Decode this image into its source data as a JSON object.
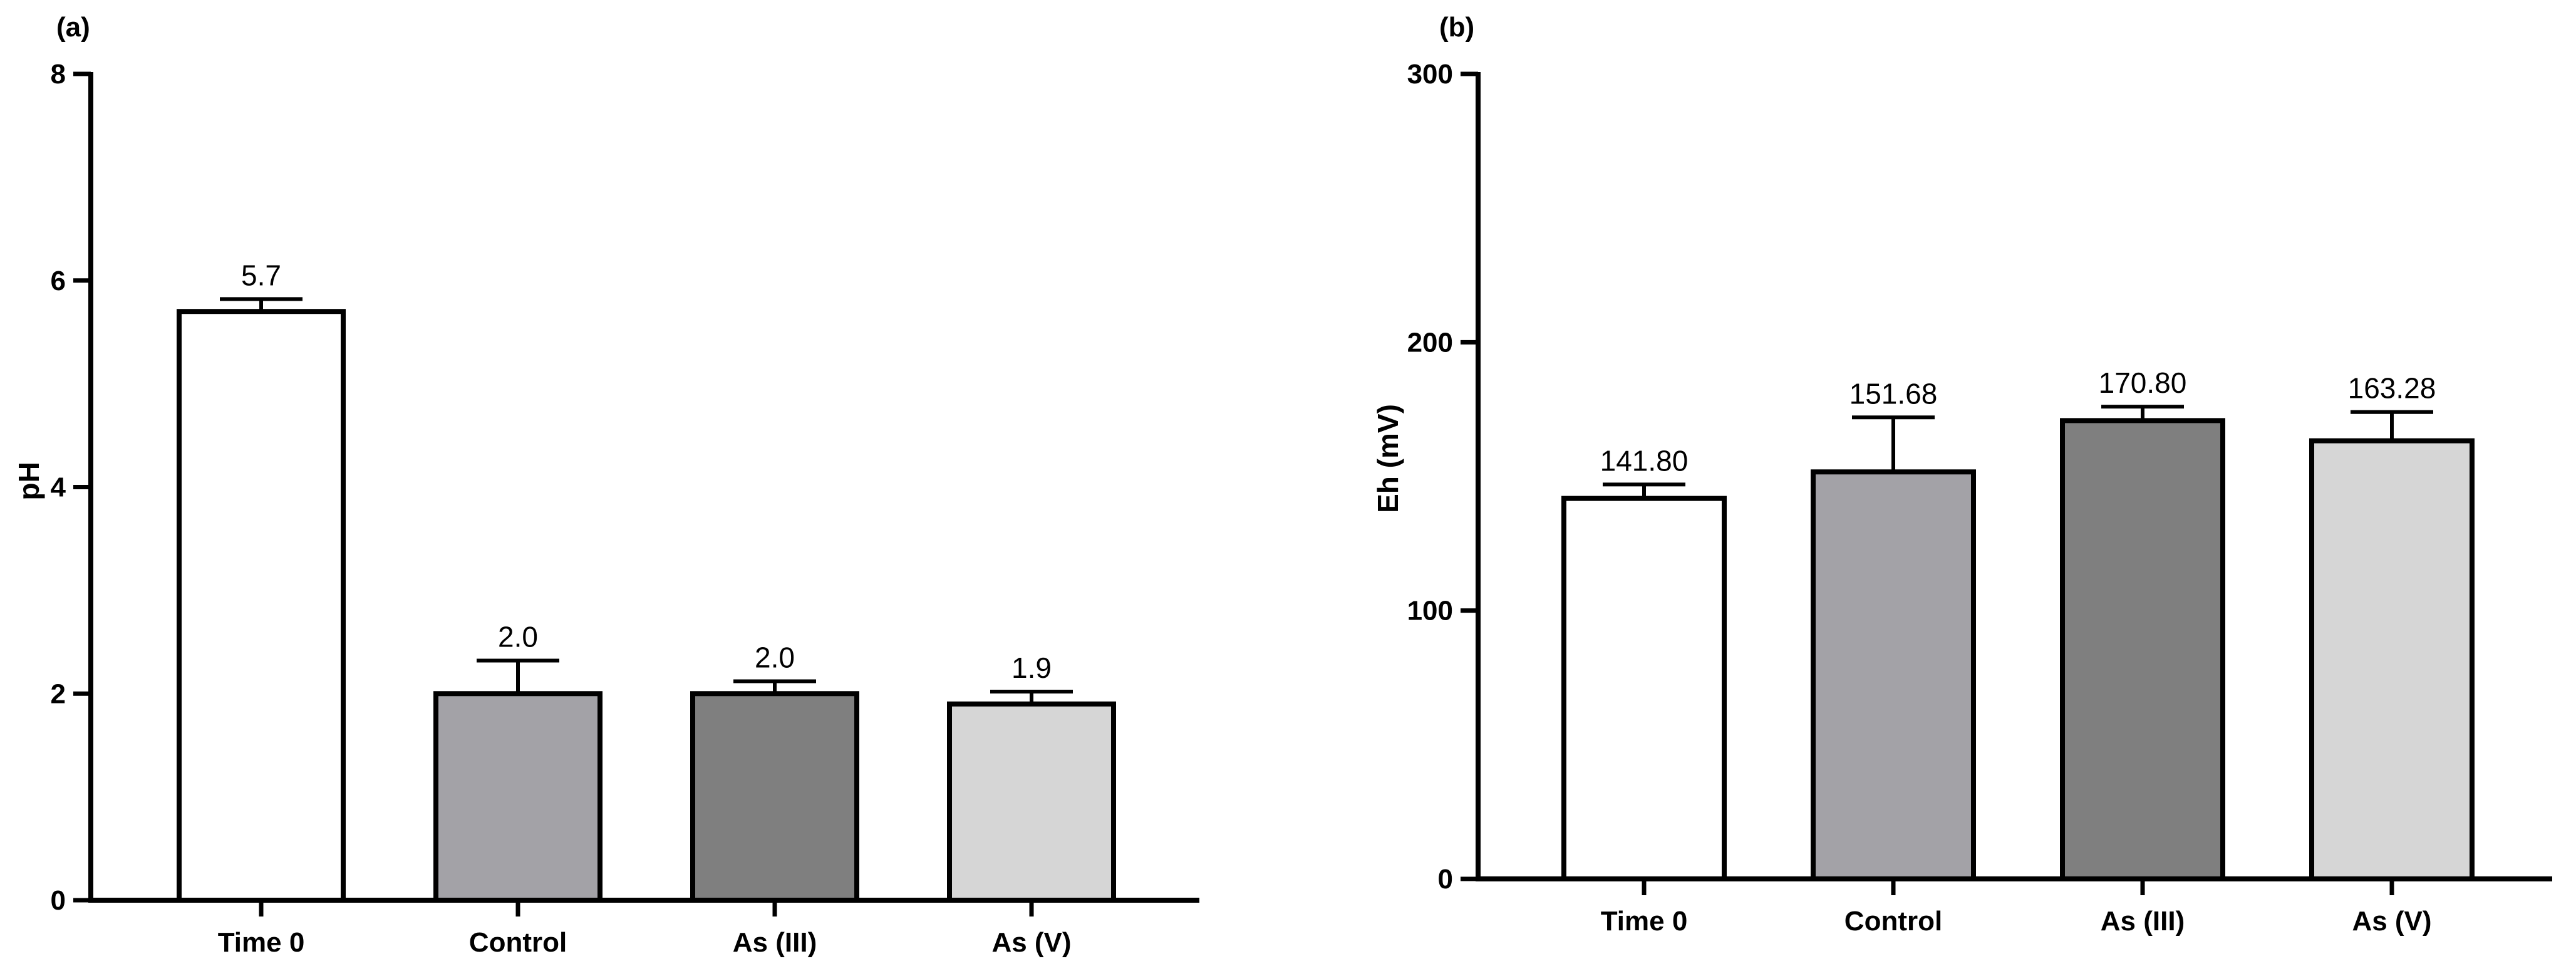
{
  "chart_data": [
    {
      "type": "bar",
      "panel_label": "(a)",
      "categories": [
        "Time 0",
        "Control",
        "As (III)",
        "As (V)"
      ],
      "values": [
        5.7,
        2.0,
        2.0,
        1.9
      ],
      "error_upper": [
        5.82,
        2.32,
        2.12,
        2.02
      ],
      "data_labels": [
        "5.7",
        "2.0",
        "2.0",
        "1.9"
      ],
      "bar_colors": [
        "#ffffff",
        "#a3a2a7",
        "#7f7f7f",
        "#d6d6d6"
      ],
      "xlabel": "",
      "ylabel": "pH",
      "ylim": [
        0,
        8
      ],
      "yticks": [
        0,
        2,
        4,
        6,
        8
      ],
      "ytick_labels": [
        "0",
        "2",
        "4",
        "6",
        "8"
      ],
      "grid": false,
      "legend": "none"
    },
    {
      "type": "bar",
      "panel_label": "(b)",
      "categories": [
        "Time 0",
        "Control",
        "As (III)",
        "As (V)"
      ],
      "values": [
        141.8,
        151.68,
        170.8,
        163.28
      ],
      "error_upper": [
        147,
        172,
        176,
        174
      ],
      "data_labels": [
        "141.80",
        "151.68",
        "170.80",
        "163.28"
      ],
      "bar_colors": [
        "#ffffff",
        "#a3a2a7",
        "#7f7f7f",
        "#d6d6d6"
      ],
      "xlabel": "",
      "ylabel": "Eh (mV)",
      "ylim": [
        0,
        300
      ],
      "yticks": [
        0,
        100,
        200,
        300
      ],
      "ytick_labels": [
        "0",
        "100",
        "200",
        "300"
      ],
      "grid": false,
      "legend": "none"
    }
  ]
}
